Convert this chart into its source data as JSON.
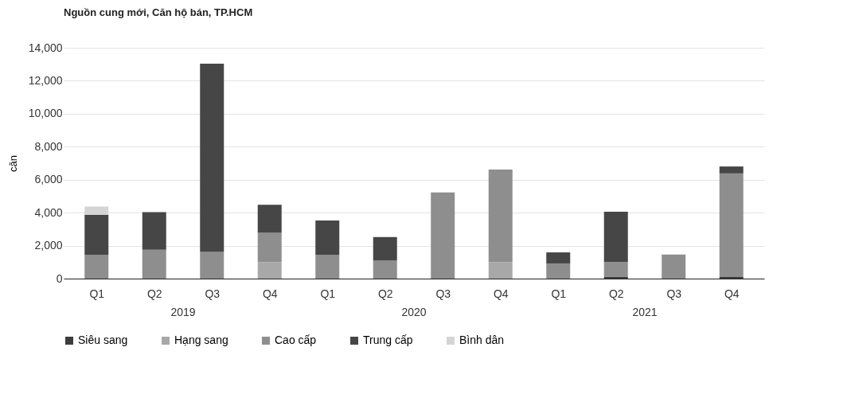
{
  "chart_data": {
    "type": "bar",
    "title": "Nguồn cung mới, Căn hộ bán, TP.HCM",
    "ylabel": "căn",
    "categories": [
      "Q1",
      "Q2",
      "Q3",
      "Q4",
      "Q1",
      "Q2",
      "Q3",
      "Q4",
      "Q1",
      "Q2",
      "Q3",
      "Q4"
    ],
    "annotations": [
      "2019",
      "2020",
      "2021"
    ],
    "stacked": true,
    "series": [
      {
        "name": "Siêu sang",
        "color": "#3c3c3c",
        "values": [
          0,
          0,
          0,
          0,
          0,
          0,
          0,
          0,
          0,
          100,
          0,
          100
        ]
      },
      {
        "name": "Hạng sang",
        "color": "#a8a8a8",
        "values": [
          0,
          0,
          0,
          1000,
          0,
          0,
          0,
          1000,
          0,
          0,
          0,
          0
        ]
      },
      {
        "name": "Cao cấp",
        "color": "#8e8e8e",
        "values": [
          1450,
          1750,
          1620,
          1780,
          1450,
          1090,
          5230,
          5610,
          920,
          900,
          1460,
          6280
        ]
      },
      {
        "name": "Trung cấp",
        "color": "#464646",
        "values": [
          2420,
          2280,
          11410,
          1700,
          2070,
          1430,
          0,
          0,
          670,
          3060,
          0,
          420
        ]
      },
      {
        "name": "Bình dân",
        "color": "#d4d4d4",
        "values": [
          500,
          0,
          0,
          0,
          0,
          0,
          0,
          0,
          0,
          0,
          0,
          0
        ]
      }
    ],
    "ylim": [
      0,
      14000
    ],
    "yticks": [
      0,
      {
        "value": 2000,
        "label": "2,000"
      },
      {
        "value": 4000,
        "label": "4,000"
      },
      {
        "value": 6000,
        "label": "6,000"
      },
      {
        "value": 8000,
        "label": "8,000"
      },
      {
        "value": 10000,
        "label": "10,000"
      },
      {
        "value": 12000,
        "label": "12,000"
      },
      {
        "value": 14000,
        "label": "14,000"
      }
    ],
    "grid": "y",
    "legend": "bottom"
  }
}
